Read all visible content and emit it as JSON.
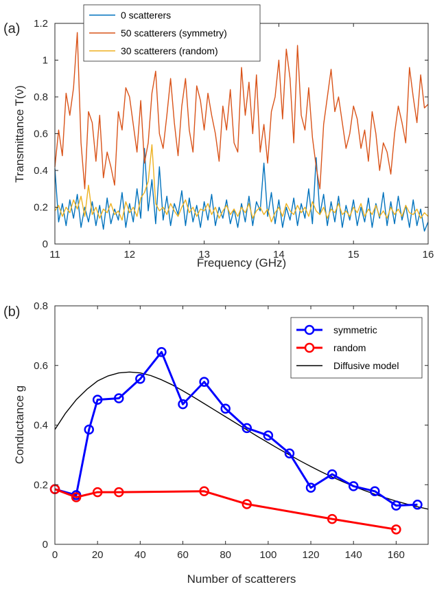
{
  "chart_data": [
    {
      "type": "line",
      "panel_label": "(a)",
      "xlabel": "Frequency (GHz)",
      "ylabel": "Transmittance  T(ν)",
      "xlim": [
        11,
        16
      ],
      "ylim": [
        0,
        1.2
      ],
      "xticks": [
        11,
        12,
        13,
        14,
        15,
        16
      ],
      "xtick_labels": [
        "11",
        "12",
        "13",
        "14",
        "15",
        "16"
      ],
      "yticks": [
        0,
        0.2,
        0.4,
        0.6,
        0.8,
        1,
        1.2
      ],
      "ytick_labels": [
        "0",
        "0.2",
        "0.4",
        "0.6",
        "0.8",
        "1",
        "1.2"
      ],
      "grid": false,
      "legend_position": "top-left",
      "series": [
        {
          "name": "0 scatterers",
          "color": "#0072BD",
          "x": [
            11.0,
            11.05,
            11.1,
            11.15,
            11.2,
            11.25,
            11.3,
            11.35,
            11.4,
            11.45,
            11.5,
            11.55,
            11.6,
            11.65,
            11.7,
            11.75,
            11.8,
            11.85,
            11.9,
            11.95,
            12.0,
            12.05,
            12.1,
            12.15,
            12.2,
            12.25,
            12.3,
            12.35,
            12.4,
            12.45,
            12.5,
            12.55,
            12.6,
            12.65,
            12.7,
            12.75,
            12.8,
            12.85,
            12.9,
            12.95,
            13.0,
            13.05,
            13.1,
            13.15,
            13.2,
            13.25,
            13.3,
            13.35,
            13.4,
            13.45,
            13.5,
            13.55,
            13.6,
            13.65,
            13.7,
            13.75,
            13.8,
            13.85,
            13.9,
            13.95,
            14.0,
            14.05,
            14.1,
            14.15,
            14.2,
            14.25,
            14.3,
            14.35,
            14.4,
            14.45,
            14.5,
            14.55,
            14.6,
            14.65,
            14.7,
            14.75,
            14.8,
            14.85,
            14.9,
            14.95,
            15.0,
            15.05,
            15.1,
            15.15,
            15.2,
            15.25,
            15.3,
            15.35,
            15.4,
            15.45,
            15.5,
            15.55,
            15.6,
            15.65,
            15.7,
            15.75,
            15.8,
            15.85,
            15.9,
            15.95,
            16.0
          ],
          "y": [
            0.41,
            0.12,
            0.22,
            0.1,
            0.24,
            0.14,
            0.27,
            0.09,
            0.2,
            0.12,
            0.23,
            0.1,
            0.21,
            0.08,
            0.25,
            0.11,
            0.19,
            0.13,
            0.28,
            0.09,
            0.22,
            0.12,
            0.3,
            0.14,
            0.52,
            0.18,
            0.35,
            0.11,
            0.42,
            0.13,
            0.26,
            0.1,
            0.22,
            0.16,
            0.29,
            0.1,
            0.25,
            0.12,
            0.21,
            0.09,
            0.23,
            0.13,
            0.27,
            0.1,
            0.2,
            0.14,
            0.24,
            0.11,
            0.19,
            0.09,
            0.22,
            0.12,
            0.26,
            0.1,
            0.23,
            0.18,
            0.44,
            0.15,
            0.28,
            0.11,
            0.24,
            0.09,
            0.2,
            0.13,
            0.25,
            0.1,
            0.22,
            0.14,
            0.3,
            0.11,
            0.47,
            0.16,
            0.27,
            0.1,
            0.23,
            0.12,
            0.26,
            0.09,
            0.21,
            0.13,
            0.24,
            0.1,
            0.2,
            0.12,
            0.25,
            0.09,
            0.22,
            0.14,
            0.28,
            0.1,
            0.23,
            0.11,
            0.26,
            0.13,
            0.21,
            0.09,
            0.24,
            0.1,
            0.19,
            0.07,
            0.12
          ]
        },
        {
          "name": "50 scatterers (symmetry)",
          "color": "#D95319",
          "x": [
            11.0,
            11.05,
            11.1,
            11.15,
            11.2,
            11.25,
            11.3,
            11.35,
            11.4,
            11.45,
            11.5,
            11.55,
            11.6,
            11.65,
            11.7,
            11.75,
            11.8,
            11.85,
            11.9,
            11.95,
            12.0,
            12.05,
            12.1,
            12.15,
            12.2,
            12.25,
            12.3,
            12.35,
            12.4,
            12.45,
            12.5,
            12.55,
            12.6,
            12.65,
            12.7,
            12.75,
            12.8,
            12.85,
            12.9,
            12.95,
            13.0,
            13.05,
            13.1,
            13.15,
            13.2,
            13.25,
            13.3,
            13.35,
            13.4,
            13.45,
            13.5,
            13.55,
            13.6,
            13.65,
            13.7,
            13.75,
            13.8,
            13.85,
            13.9,
            13.95,
            14.0,
            14.05,
            14.1,
            14.15,
            14.2,
            14.25,
            14.3,
            14.35,
            14.4,
            14.45,
            14.5,
            14.55,
            14.6,
            14.65,
            14.7,
            14.75,
            14.8,
            14.85,
            14.9,
            14.95,
            15.0,
            15.05,
            15.1,
            15.15,
            15.2,
            15.25,
            15.3,
            15.35,
            15.4,
            15.45,
            15.5,
            15.55,
            15.6,
            15.65,
            15.7,
            15.75,
            15.8,
            15.85,
            15.9,
            15.95,
            16.0
          ],
          "y": [
            0.42,
            0.62,
            0.48,
            0.82,
            0.7,
            0.85,
            1.15,
            0.55,
            0.3,
            0.72,
            0.66,
            0.45,
            0.7,
            0.36,
            0.5,
            0.42,
            0.32,
            0.72,
            0.62,
            0.85,
            0.8,
            0.65,
            0.5,
            0.78,
            0.44,
            0.55,
            0.82,
            0.94,
            0.6,
            0.52,
            0.7,
            0.9,
            0.66,
            0.48,
            0.75,
            0.9,
            0.62,
            0.5,
            0.86,
            0.78,
            0.62,
            0.82,
            0.7,
            0.6,
            0.45,
            0.75,
            0.62,
            0.84,
            0.55,
            0.5,
            0.96,
            0.7,
            0.88,
            0.6,
            0.92,
            0.5,
            0.65,
            0.44,
            0.72,
            0.8,
            1.0,
            0.68,
            1.06,
            0.9,
            0.55,
            1.08,
            0.7,
            0.62,
            0.85,
            0.58,
            0.42,
            0.3,
            0.65,
            0.8,
            0.95,
            0.72,
            0.8,
            0.66,
            0.52,
            0.6,
            0.75,
            0.68,
            0.52,
            0.62,
            0.45,
            0.72,
            0.6,
            0.4,
            0.55,
            0.5,
            0.38,
            0.6,
            0.75,
            0.66,
            0.55,
            0.96,
            0.8,
            0.66,
            0.92,
            0.74,
            0.76
          ]
        },
        {
          "name": "30 scatterers (random)",
          "color": "#EDB120",
          "x": [
            11.0,
            11.05,
            11.1,
            11.15,
            11.2,
            11.25,
            11.3,
            11.35,
            11.4,
            11.45,
            11.5,
            11.55,
            11.6,
            11.65,
            11.7,
            11.75,
            11.8,
            11.85,
            11.9,
            11.95,
            12.0,
            12.05,
            12.1,
            12.15,
            12.2,
            12.25,
            12.3,
            12.35,
            12.4,
            12.45,
            12.5,
            12.55,
            12.6,
            12.65,
            12.7,
            12.75,
            12.8,
            12.85,
            12.9,
            12.95,
            13.0,
            13.05,
            13.1,
            13.15,
            13.2,
            13.25,
            13.3,
            13.35,
            13.4,
            13.45,
            13.5,
            13.55,
            13.6,
            13.65,
            13.7,
            13.75,
            13.8,
            13.85,
            13.9,
            13.95,
            14.0,
            14.05,
            14.1,
            14.15,
            14.2,
            14.25,
            14.3,
            14.35,
            14.4,
            14.45,
            14.5,
            14.55,
            14.6,
            14.65,
            14.7,
            14.75,
            14.8,
            14.85,
            14.9,
            14.95,
            15.0,
            15.05,
            15.1,
            15.15,
            15.2,
            15.25,
            15.3,
            15.35,
            15.4,
            15.45,
            15.5,
            15.55,
            15.6,
            15.65,
            15.7,
            15.75,
            15.8,
            15.85,
            15.9,
            15.95,
            16.0
          ],
          "y": [
            0.18,
            0.21,
            0.15,
            0.2,
            0.17,
            0.24,
            0.19,
            0.26,
            0.15,
            0.32,
            0.16,
            0.2,
            0.14,
            0.19,
            0.17,
            0.22,
            0.16,
            0.18,
            0.13,
            0.23,
            0.17,
            0.2,
            0.15,
            0.25,
            0.28,
            0.34,
            0.54,
            0.22,
            0.18,
            0.2,
            0.16,
            0.22,
            0.18,
            0.15,
            0.2,
            0.24,
            0.17,
            0.2,
            0.15,
            0.19,
            0.18,
            0.22,
            0.16,
            0.2,
            0.14,
            0.18,
            0.21,
            0.16,
            0.19,
            0.15,
            0.2,
            0.17,
            0.22,
            0.14,
            0.18,
            0.2,
            0.16,
            0.19,
            0.12,
            0.17,
            0.2,
            0.15,
            0.22,
            0.18,
            0.16,
            0.21,
            0.17,
            0.2,
            0.15,
            0.23,
            0.18,
            0.16,
            0.2,
            0.14,
            0.19,
            0.17,
            0.22,
            0.16,
            0.18,
            0.15,
            0.2,
            0.17,
            0.22,
            0.15,
            0.19,
            0.16,
            0.21,
            0.15,
            0.18,
            0.14,
            0.2,
            0.16,
            0.19,
            0.15,
            0.21,
            0.17,
            0.16,
            0.19,
            0.14,
            0.17,
            0.15
          ]
        }
      ]
    },
    {
      "type": "line",
      "panel_label": "(b)",
      "xlabel": "Number of scatterers",
      "ylabel": "Conductance g",
      "xlim": [
        0,
        175
      ],
      "ylim": [
        0,
        0.8
      ],
      "xticks": [
        0,
        20,
        40,
        60,
        80,
        100,
        120,
        140,
        160
      ],
      "xtick_labels": [
        "0",
        "20",
        "40",
        "60",
        "80",
        "100",
        "120",
        "140",
        "160"
      ],
      "yticks": [
        0,
        0.2,
        0.4,
        0.6,
        0.8
      ],
      "ytick_labels": [
        "0",
        "0.2",
        "0.4",
        "0.6",
        "0.8"
      ],
      "grid": false,
      "legend_position": "top-right",
      "series": [
        {
          "name": "symmetric",
          "color": "#0000FF",
          "marker": "circle",
          "x": [
            0,
            10,
            16,
            20,
            30,
            40,
            50,
            60,
            70,
            80,
            90,
            100,
            110,
            120,
            130,
            140,
            150,
            160,
            170
          ],
          "y": [
            0.185,
            0.165,
            0.385,
            0.485,
            0.49,
            0.555,
            0.645,
            0.47,
            0.545,
            0.455,
            0.39,
            0.365,
            0.305,
            0.19,
            0.235,
            0.195,
            0.178,
            0.13,
            0.133
          ]
        },
        {
          "name": "random",
          "color": "#FF0000",
          "marker": "circle",
          "x": [
            0,
            10,
            20,
            30,
            70,
            90,
            130,
            160
          ],
          "y": [
            0.185,
            0.158,
            0.175,
            0.175,
            0.178,
            0.135,
            0.085,
            0.05
          ]
        },
        {
          "name": "Diffusive model",
          "color": "#000000",
          "marker": "none",
          "x": [
            0,
            5,
            10,
            15,
            20,
            25,
            30,
            35,
            40,
            45,
            50,
            55,
            60,
            65,
            70,
            75,
            80,
            85,
            90,
            95,
            100,
            105,
            110,
            115,
            120,
            125,
            130,
            135,
            140,
            145,
            150,
            155,
            160,
            165,
            170,
            175
          ],
          "y": [
            0.385,
            0.44,
            0.485,
            0.52,
            0.548,
            0.565,
            0.575,
            0.578,
            0.575,
            0.566,
            0.552,
            0.535,
            0.515,
            0.494,
            0.472,
            0.45,
            0.428,
            0.406,
            0.384,
            0.362,
            0.341,
            0.32,
            0.3,
            0.28,
            0.261,
            0.243,
            0.226,
            0.21,
            0.195,
            0.181,
            0.168,
            0.156,
            0.145,
            0.135,
            0.126,
            0.118
          ]
        }
      ]
    }
  ]
}
